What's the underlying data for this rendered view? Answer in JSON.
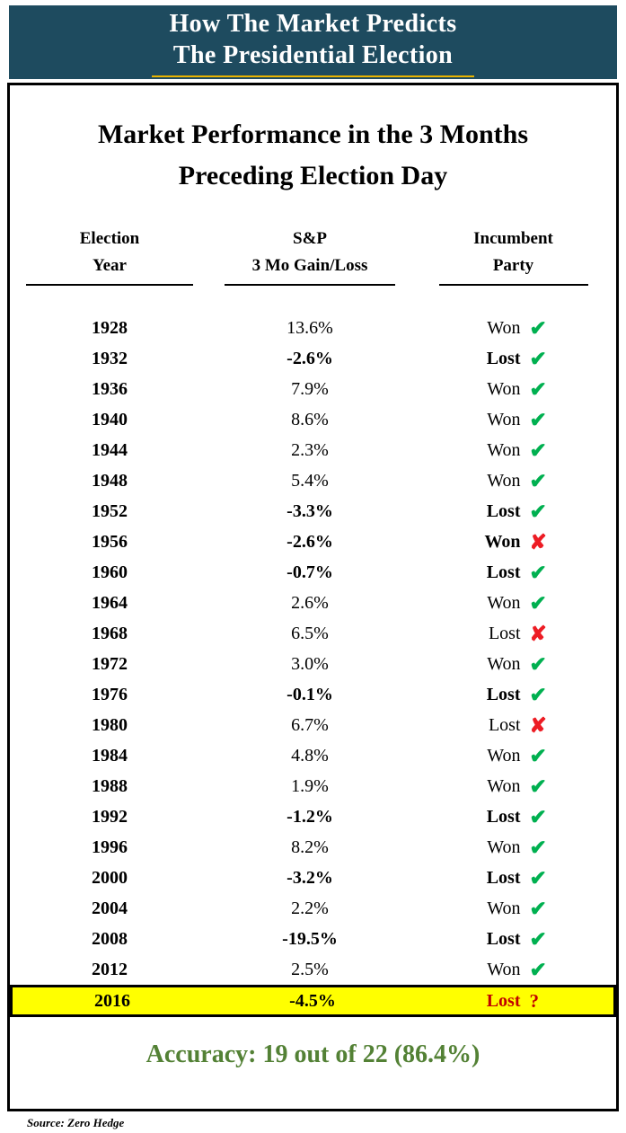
{
  "banner": {
    "line1": "How The Market Predicts",
    "line2": "The Presidential Election"
  },
  "title": {
    "line1": "Market Performance in the 3 Months",
    "line2": "Preceding Election Day"
  },
  "table_headers": {
    "year_line1": "Election",
    "year_line2": "Year",
    "sp_line1": "S&P",
    "sp_line2": "3 Mo Gain/Loss",
    "incumbent_line1": "Incumbent",
    "incumbent_line2": "Party"
  },
  "accuracy": "Accuracy: 19 out of 22 (86.4%)",
  "source": "Source: Zero Hedge",
  "colors": {
    "banner_bg": "#1E4B5F",
    "banner_text": "#FFFFFF",
    "gold_line": "#E9B400",
    "text_black": "#000000",
    "check_green": "#00B050",
    "x_red": "#ED1C24",
    "question_red": "#C00000",
    "accuracy_green": "#538135",
    "highlight_yellow": "#FFFF00"
  },
  "chart_data": {
    "type": "table",
    "title": "Market Performance in the 3 Months Preceding Election Day",
    "columns": [
      "Election Year",
      "S&P 3 Mo Gain/Loss",
      "Incumbent Party"
    ],
    "accuracy_note": "Accuracy: 19 out of 22 (86.4%)",
    "rows": [
      {
        "year": "1928",
        "gain_pct": 13.6,
        "gain_label": "13.6%",
        "incumbent": "Won",
        "mark": "check",
        "emphasis": false,
        "highlight": false
      },
      {
        "year": "1932",
        "gain_pct": -2.6,
        "gain_label": "-2.6%",
        "incumbent": "Lost",
        "mark": "check",
        "emphasis": true,
        "highlight": false
      },
      {
        "year": "1936",
        "gain_pct": 7.9,
        "gain_label": "7.9%",
        "incumbent": "Won",
        "mark": "check",
        "emphasis": false,
        "highlight": false
      },
      {
        "year": "1940",
        "gain_pct": 8.6,
        "gain_label": "8.6%",
        "incumbent": "Won",
        "mark": "check",
        "emphasis": false,
        "highlight": false
      },
      {
        "year": "1944",
        "gain_pct": 2.3,
        "gain_label": "2.3%",
        "incumbent": "Won",
        "mark": "check",
        "emphasis": false,
        "highlight": false
      },
      {
        "year": "1948",
        "gain_pct": 5.4,
        "gain_label": "5.4%",
        "incumbent": "Won",
        "mark": "check",
        "emphasis": false,
        "highlight": false
      },
      {
        "year": "1952",
        "gain_pct": -3.3,
        "gain_label": "-3.3%",
        "incumbent": "Lost",
        "mark": "check",
        "emphasis": true,
        "highlight": false
      },
      {
        "year": "1956",
        "gain_pct": -2.6,
        "gain_label": "-2.6%",
        "incumbent": "Won",
        "mark": "x",
        "emphasis": true,
        "highlight": false
      },
      {
        "year": "1960",
        "gain_pct": -0.7,
        "gain_label": "-0.7%",
        "incumbent": "Lost",
        "mark": "check",
        "emphasis": true,
        "highlight": false
      },
      {
        "year": "1964",
        "gain_pct": 2.6,
        "gain_label": "2.6%",
        "incumbent": "Won",
        "mark": "check",
        "emphasis": false,
        "highlight": false
      },
      {
        "year": "1968",
        "gain_pct": 6.5,
        "gain_label": "6.5%",
        "incumbent": "Lost",
        "mark": "x",
        "emphasis": false,
        "highlight": false
      },
      {
        "year": "1972",
        "gain_pct": 3.0,
        "gain_label": "3.0%",
        "incumbent": "Won",
        "mark": "check",
        "emphasis": false,
        "highlight": false
      },
      {
        "year": "1976",
        "gain_pct": -0.1,
        "gain_label": "-0.1%",
        "incumbent": "Lost",
        "mark": "check",
        "emphasis": true,
        "highlight": false
      },
      {
        "year": "1980",
        "gain_pct": 6.7,
        "gain_label": "6.7%",
        "incumbent": "Lost",
        "mark": "x",
        "emphasis": false,
        "highlight": false
      },
      {
        "year": "1984",
        "gain_pct": 4.8,
        "gain_label": "4.8%",
        "incumbent": "Won",
        "mark": "check",
        "emphasis": false,
        "highlight": false
      },
      {
        "year": "1988",
        "gain_pct": 1.9,
        "gain_label": "1.9%",
        "incumbent": "Won",
        "mark": "check",
        "emphasis": false,
        "highlight": false
      },
      {
        "year": "1992",
        "gain_pct": -1.2,
        "gain_label": "-1.2%",
        "incumbent": "Lost",
        "mark": "check",
        "emphasis": true,
        "highlight": false
      },
      {
        "year": "1996",
        "gain_pct": 8.2,
        "gain_label": "8.2%",
        "incumbent": "Won",
        "mark": "check",
        "emphasis": false,
        "highlight": false
      },
      {
        "year": "2000",
        "gain_pct": -3.2,
        "gain_label": "-3.2%",
        "incumbent": "Lost",
        "mark": "check",
        "emphasis": true,
        "highlight": false
      },
      {
        "year": "2004",
        "gain_pct": 2.2,
        "gain_label": "2.2%",
        "incumbent": "Won",
        "mark": "check",
        "emphasis": false,
        "highlight": false
      },
      {
        "year": "2008",
        "gain_pct": -19.5,
        "gain_label": "-19.5%",
        "incumbent": "Lost",
        "mark": "check",
        "emphasis": true,
        "highlight": false
      },
      {
        "year": "2012",
        "gain_pct": 2.5,
        "gain_label": "2.5%",
        "incumbent": "Won",
        "mark": "check",
        "emphasis": false,
        "highlight": false
      },
      {
        "year": "2016",
        "gain_pct": -4.5,
        "gain_label": "-4.5%",
        "incumbent": "Lost",
        "mark": "question",
        "emphasis": true,
        "highlight": true
      }
    ]
  }
}
